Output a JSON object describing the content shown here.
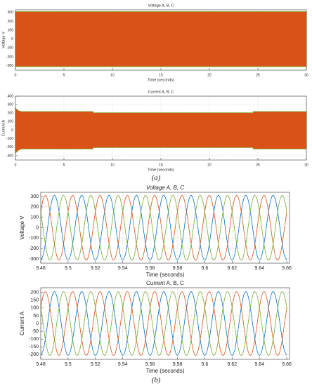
{
  "chart_data": [
    {
      "type": "band",
      "title": "Voltage A, B, C",
      "xlabel": "Time (seconds)",
      "ylabel": "Voltage V",
      "color": "#d95319",
      "edge_color": "#77ac30",
      "x": [
        0,
        30
      ],
      "upper": [
        310,
        310
      ],
      "lower": [
        -310,
        -310
      ],
      "xlim": [
        0,
        30
      ],
      "xticks": [
        0,
        5,
        10,
        15,
        20,
        25,
        30
      ],
      "ylim": [
        -350,
        330
      ],
      "yticks": [
        -300,
        -200,
        -100,
        0,
        100,
        200,
        300
      ],
      "grid": true
    },
    {
      "type": "band",
      "title": "Current A, B, C",
      "xlabel": "Time (seconds)",
      "ylabel": "Current A",
      "color": "#d95319",
      "edge_color": "#77ac30",
      "x": [
        0,
        0.3,
        0.6,
        8,
        8.01,
        24.5,
        24.51,
        30
      ],
      "upper": [
        260,
        230,
        220,
        220,
        205,
        205,
        220,
        220
      ],
      "lower": [
        -270,
        -235,
        -220,
        -220,
        -205,
        -205,
        -220,
        -220
      ],
      "xlim": [
        0,
        30
      ],
      "xticks": [
        0,
        5,
        10,
        15,
        20,
        25,
        30
      ],
      "ylim": [
        -350,
        400
      ],
      "yticks": [
        -300,
        -200,
        -100,
        0,
        100,
        200,
        300,
        400
      ],
      "grid": true
    },
    {
      "type": "line",
      "title": "Voltage A, B, C",
      "xlabel": "Time (seconds)",
      "ylabel": "Voltage V",
      "x": [
        9.48,
        9.482,
        9.484,
        9.486,
        9.488,
        9.49,
        9.492,
        9.494,
        9.496,
        9.498,
        9.5,
        9.502,
        9.504,
        9.506,
        9.508,
        9.51,
        9.512,
        9.514,
        9.516,
        9.518,
        9.52,
        9.522,
        9.524,
        9.526,
        9.528,
        9.53,
        9.532,
        9.534,
        9.536,
        9.538,
        9.54,
        9.542,
        9.544,
        9.546,
        9.548,
        9.55,
        9.552,
        9.554,
        9.556,
        9.558,
        9.56,
        9.562,
        9.564,
        9.566,
        9.568,
        9.57,
        9.572,
        9.574,
        9.576,
        9.578,
        9.58,
        9.582,
        9.584,
        9.586,
        9.588,
        9.59,
        9.592,
        9.594,
        9.596,
        9.598,
        9.6,
        9.602,
        9.604,
        9.606,
        9.608,
        9.61,
        9.612,
        9.614,
        9.616,
        9.618,
        9.62,
        9.622,
        9.624,
        9.626,
        9.628,
        9.63,
        9.632,
        9.634,
        9.636,
        9.638,
        9.64,
        9.642,
        9.644,
        9.646,
        9.648,
        9.65,
        9.652,
        9.654,
        9.656,
        9.658,
        9.66
      ],
      "series": [
        {
          "color": "#0072bd",
          "values": [
            -311,
            -252,
            -96,
            96,
            252,
            311,
            252,
            96,
            -96,
            -252,
            -311,
            -252,
            -96,
            96,
            252,
            311,
            252,
            96,
            -96,
            -252,
            -311,
            -252,
            -96,
            96,
            252,
            311,
            252,
            96,
            -96,
            -252,
            -311,
            -252,
            -96,
            96,
            252,
            311,
            252,
            96,
            -96,
            -252,
            -311,
            -252,
            -96,
            96,
            252,
            311,
            252,
            96,
            -96,
            -252,
            -311,
            -252,
            -96,
            96,
            252,
            311,
            252,
            96,
            -96,
            -252,
            -311,
            -252,
            -96,
            96,
            252,
            311,
            252,
            96,
            -96,
            -252,
            -311,
            -252,
            -96,
            96,
            252,
            311,
            252,
            96,
            -96,
            -252,
            -311,
            -252,
            -96,
            96,
            252,
            311,
            252,
            96,
            -96,
            -252,
            -311
          ]
        },
        {
          "color": "#d95319",
          "values": [
            156,
            284,
            304,
            208,
            33,
            -156,
            -284,
            -304,
            -208,
            -33,
            156,
            284,
            304,
            208,
            33,
            -156,
            -284,
            -304,
            -208,
            -33,
            156,
            284,
            304,
            208,
            33,
            -156,
            -284,
            -304,
            -208,
            -33,
            156,
            284,
            304,
            208,
            33,
            -156,
            -284,
            -304,
            -208,
            -33,
            156,
            284,
            304,
            208,
            33,
            -156,
            -284,
            -304,
            -208,
            -33,
            156,
            284,
            304,
            208,
            33,
            -156,
            -284,
            -304,
            -208,
            -33,
            156,
            284,
            304,
            208,
            33,
            -156,
            -284,
            -304,
            -208,
            -33,
            156,
            284,
            304,
            208,
            33,
            -156,
            -284,
            -304,
            -208,
            -33,
            156,
            284,
            304,
            208,
            33,
            -156,
            -284,
            -304,
            -208,
            -33,
            156
          ]
        },
        {
          "color": "#77ac30",
          "values": [
            156,
            -33,
            -208,
            -304,
            -284,
            -156,
            33,
            208,
            304,
            284,
            156,
            -33,
            -208,
            -304,
            -284,
            -156,
            33,
            208,
            304,
            284,
            156,
            -33,
            -208,
            -304,
            -284,
            -156,
            33,
            208,
            304,
            284,
            156,
            -33,
            -208,
            -304,
            -284,
            -156,
            33,
            208,
            304,
            284,
            156,
            -33,
            -208,
            -304,
            -284,
            -156,
            33,
            208,
            304,
            284,
            156,
            -33,
            -208,
            -304,
            -284,
            -156,
            33,
            208,
            304,
            284,
            156,
            -33,
            -208,
            -304,
            -284,
            -156,
            33,
            208,
            304,
            284,
            156,
            -33,
            -208,
            -304,
            -284,
            -156,
            33,
            208,
            304,
            284,
            156,
            -33,
            -208,
            -304,
            -284,
            -156,
            33,
            208,
            304,
            284,
            156
          ]
        }
      ],
      "xlim": [
        9.48,
        9.662
      ],
      "xticks": [
        9.48,
        9.5,
        9.52,
        9.54,
        9.56,
        9.58,
        9.6,
        9.62,
        9.64,
        9.66
      ],
      "ylim": [
        -340,
        340
      ],
      "yticks": [
        -300,
        -200,
        -100,
        0,
        100,
        200,
        300
      ],
      "grid": true
    },
    {
      "type": "line",
      "title": "Current A, B, C",
      "xlabel": "Time (seconds)",
      "ylabel": "Current A",
      "x": [
        9.48,
        9.482,
        9.484,
        9.486,
        9.488,
        9.49,
        9.492,
        9.494,
        9.496,
        9.498,
        9.5,
        9.502,
        9.504,
        9.506,
        9.508,
        9.51,
        9.512,
        9.514,
        9.516,
        9.518,
        9.52,
        9.522,
        9.524,
        9.526,
        9.528,
        9.53,
        9.532,
        9.534,
        9.536,
        9.538,
        9.54,
        9.542,
        9.544,
        9.546,
        9.548,
        9.55,
        9.552,
        9.554,
        9.556,
        9.558,
        9.56,
        9.562,
        9.564,
        9.566,
        9.568,
        9.57,
        9.572,
        9.574,
        9.576,
        9.578,
        9.58,
        9.582,
        9.584,
        9.586,
        9.588,
        9.59,
        9.592,
        9.594,
        9.596,
        9.598,
        9.6,
        9.602,
        9.604,
        9.606,
        9.608,
        9.61,
        9.612,
        9.614,
        9.616,
        9.618,
        9.62,
        9.622,
        9.624,
        9.626,
        9.628,
        9.63,
        9.632,
        9.634,
        9.636,
        9.638,
        9.64,
        9.642,
        9.644,
        9.646,
        9.648,
        9.65,
        9.652,
        9.654,
        9.656,
        9.658,
        9.66
      ],
      "series": [
        {
          "color": "#0072bd",
          "values": [
            -205,
            -166,
            -63,
            63,
            166,
            205,
            166,
            63,
            -63,
            -166,
            -205,
            -166,
            -63,
            63,
            166,
            205,
            166,
            63,
            -63,
            -166,
            -205,
            -166,
            -63,
            63,
            166,
            205,
            166,
            63,
            -63,
            -166,
            -205,
            -166,
            -63,
            63,
            166,
            205,
            166,
            63,
            -63,
            -166,
            -205,
            -166,
            -63,
            63,
            166,
            205,
            166,
            63,
            -63,
            -166,
            -205,
            -166,
            -63,
            63,
            166,
            205,
            166,
            63,
            -63,
            -166,
            -205,
            -166,
            -63,
            63,
            166,
            205,
            166,
            63,
            -63,
            -166,
            -205,
            -166,
            -63,
            63,
            166,
            205,
            166,
            63,
            -63,
            -166,
            -205,
            -166,
            -63,
            63,
            166,
            205,
            166,
            63,
            -63,
            -166,
            -205
          ]
        },
        {
          "color": "#d95319",
          "values": [
            103,
            187,
            201,
            137,
            21,
            -103,
            -187,
            -201,
            -137,
            -21,
            103,
            187,
            201,
            137,
            21,
            -103,
            -187,
            -201,
            -137,
            -21,
            103,
            187,
            201,
            137,
            21,
            -103,
            -187,
            -201,
            -137,
            -21,
            103,
            187,
            201,
            137,
            21,
            -103,
            -187,
            -201,
            -137,
            -21,
            103,
            187,
            201,
            137,
            21,
            -103,
            -187,
            -201,
            -137,
            -21,
            103,
            187,
            201,
            137,
            21,
            -103,
            -187,
            -201,
            -137,
            -21,
            103,
            187,
            201,
            137,
            21,
            -103,
            -187,
            -201,
            -137,
            -21,
            103,
            187,
            201,
            137,
            21,
            -103,
            -187,
            -201,
            -137,
            -21,
            103,
            187,
            201,
            137,
            21,
            -103,
            -187,
            -201,
            -137,
            -21,
            103
          ]
        },
        {
          "color": "#77ac30",
          "values": [
            103,
            -21,
            -137,
            -201,
            -187,
            -103,
            21,
            137,
            201,
            187,
            103,
            -21,
            -137,
            -201,
            -187,
            -103,
            21,
            137,
            201,
            187,
            103,
            -21,
            -137,
            -201,
            -187,
            -103,
            21,
            137,
            201,
            187,
            103,
            -21,
            -137,
            -201,
            -187,
            -103,
            21,
            137,
            201,
            187,
            103,
            -21,
            -137,
            -201,
            -187,
            -103,
            21,
            137,
            201,
            187,
            103,
            -21,
            -137,
            -201,
            -187,
            -103,
            21,
            137,
            201,
            187,
            103,
            -21,
            -137,
            -201,
            -187,
            -103,
            21,
            137,
            201,
            187,
            103,
            -21,
            -137,
            -201,
            -187,
            -103,
            21,
            137,
            201,
            187,
            103,
            -21,
            -137,
            -201,
            -187,
            -103,
            21,
            137,
            201,
            187,
            103
          ]
        }
      ],
      "xlim": [
        9.48,
        9.662
      ],
      "xticks": [
        9.48,
        9.5,
        9.52,
        9.54,
        9.56,
        9.58,
        9.6,
        9.62,
        9.64,
        9.66
      ],
      "ylim": [
        -230,
        230
      ],
      "yticks": [
        -200,
        -150,
        -100,
        -50,
        0,
        50,
        100,
        150,
        200
      ],
      "grid": true
    }
  ],
  "captions": [
    "(a)",
    "(b)"
  ]
}
